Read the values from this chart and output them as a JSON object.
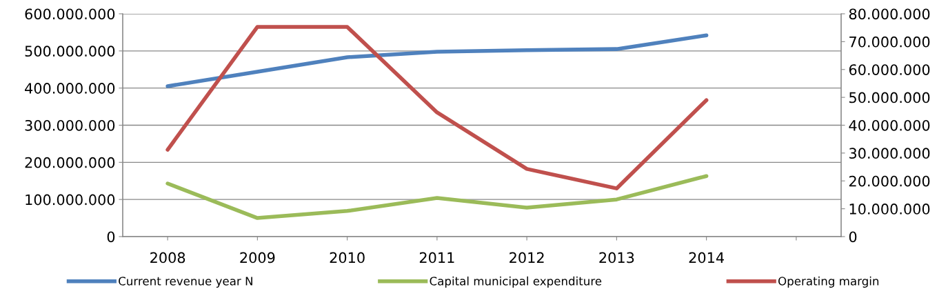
{
  "chart_data": {
    "type": "line",
    "categories": [
      "2008",
      "2009",
      "2010",
      "2011",
      "2012",
      "2013",
      "2014",
      null
    ],
    "series": [
      {
        "name": "Current revenue year N",
        "color": "#4f81bd",
        "values": [
          405000000,
          444000000,
          483000000,
          498000000,
          502000000,
          505000000,
          542000000,
          null
        ]
      },
      {
        "name": "Capital municipal expenditure",
        "color": "#9bbb59",
        "values": [
          143000000,
          50000000,
          69000000,
          104000000,
          78000000,
          100000000,
          163000000,
          null
        ]
      },
      {
        "name": "Operating margin",
        "color": "#c0504d",
        "axis": "y2",
        "values": [
          31200000,
          75300000,
          75300000,
          44600000,
          24300000,
          17300000,
          49000000,
          null
        ]
      }
    ],
    "ylim": [
      0,
      600000000
    ],
    "yticks": [
      0,
      {
        "value": 100000000,
        "label": "100.000.000"
      },
      {
        "value": 200000000,
        "label": "200.000.000"
      },
      {
        "value": 300000000,
        "label": "300.000.000"
      },
      {
        "value": 400000000,
        "label": "400.000.000"
      },
      {
        "value": 500000000,
        "label": "500.000.000"
      },
      {
        "value": 600000000,
        "label": "600.000.000"
      }
    ],
    "y2lim": [
      0,
      80000000
    ],
    "y2ticks": [
      0,
      {
        "value": 10000000,
        "label": "10.000.000"
      },
      {
        "value": 20000000,
        "label": "20.000.000"
      },
      {
        "value": 30000000,
        "label": "30.000.000"
      },
      {
        "value": 40000000,
        "label": "40.000.000"
      },
      {
        "value": 50000000,
        "label": "50.000.000"
      },
      {
        "value": 60000000,
        "label": "60.000.000"
      },
      {
        "value": 70000000,
        "label": "70.000.000"
      },
      {
        "value": 80000000,
        "label": "80.000.000"
      }
    ],
    "grid": "y",
    "legend": "bottom",
    "marker": "none",
    "line_style": "solid"
  }
}
